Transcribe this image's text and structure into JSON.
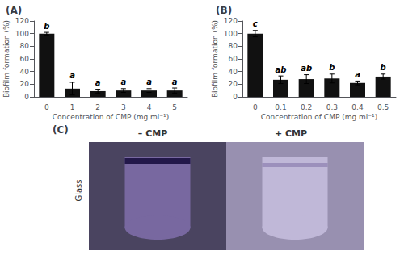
{
  "chart_data": [
    {
      "type": "bar",
      "title": "(A)",
      "x_label": "Concentration of CMP (mg ml⁻¹)",
      "y_label": "Biofilm formation (%)",
      "categories": [
        "0",
        "1",
        "2",
        "3",
        "4",
        "5"
      ],
      "values": [
        100,
        13,
        9,
        10,
        10,
        10
      ],
      "yerr": [
        2,
        10,
        3,
        3,
        3,
        4
      ],
      "annotations": [
        "b",
        "a",
        "a",
        "a",
        "a",
        "a"
      ],
      "color": "#111111",
      "ylim": [
        0,
        120
      ],
      "yticks": [
        0,
        20,
        40,
        60,
        80,
        100,
        120
      ],
      "grid": false
    },
    {
      "type": "bar",
      "title": "(B)",
      "x_label": "Concentration of CMP (mg ml⁻¹)",
      "y_label": "Biofilm formation (%)",
      "categories": [
        "0",
        "0.1",
        "0.2",
        "0.3",
        "0.4",
        "0.5"
      ],
      "values": [
        100,
        27,
        28,
        29,
        22,
        32
      ],
      "yerr": [
        5,
        6,
        7,
        7,
        3,
        4
      ],
      "annotations": [
        "c",
        "ab",
        "ab",
        "b",
        "a",
        "b"
      ],
      "color": "#111111",
      "ylim": [
        0,
        120
      ],
      "yticks": [
        0,
        20,
        40,
        60,
        80,
        100,
        120
      ],
      "grid": false
    },
    {
      "type": "diagram",
      "title": "(C)",
      "annotations": [
        "– CMP",
        "+ CMP",
        "Glass"
      ],
      "colors": [
        "#4a4460",
        "#9890b0",
        "#7868a0",
        "#c0b8d8",
        "#1a1040"
      ]
    }
  ]
}
